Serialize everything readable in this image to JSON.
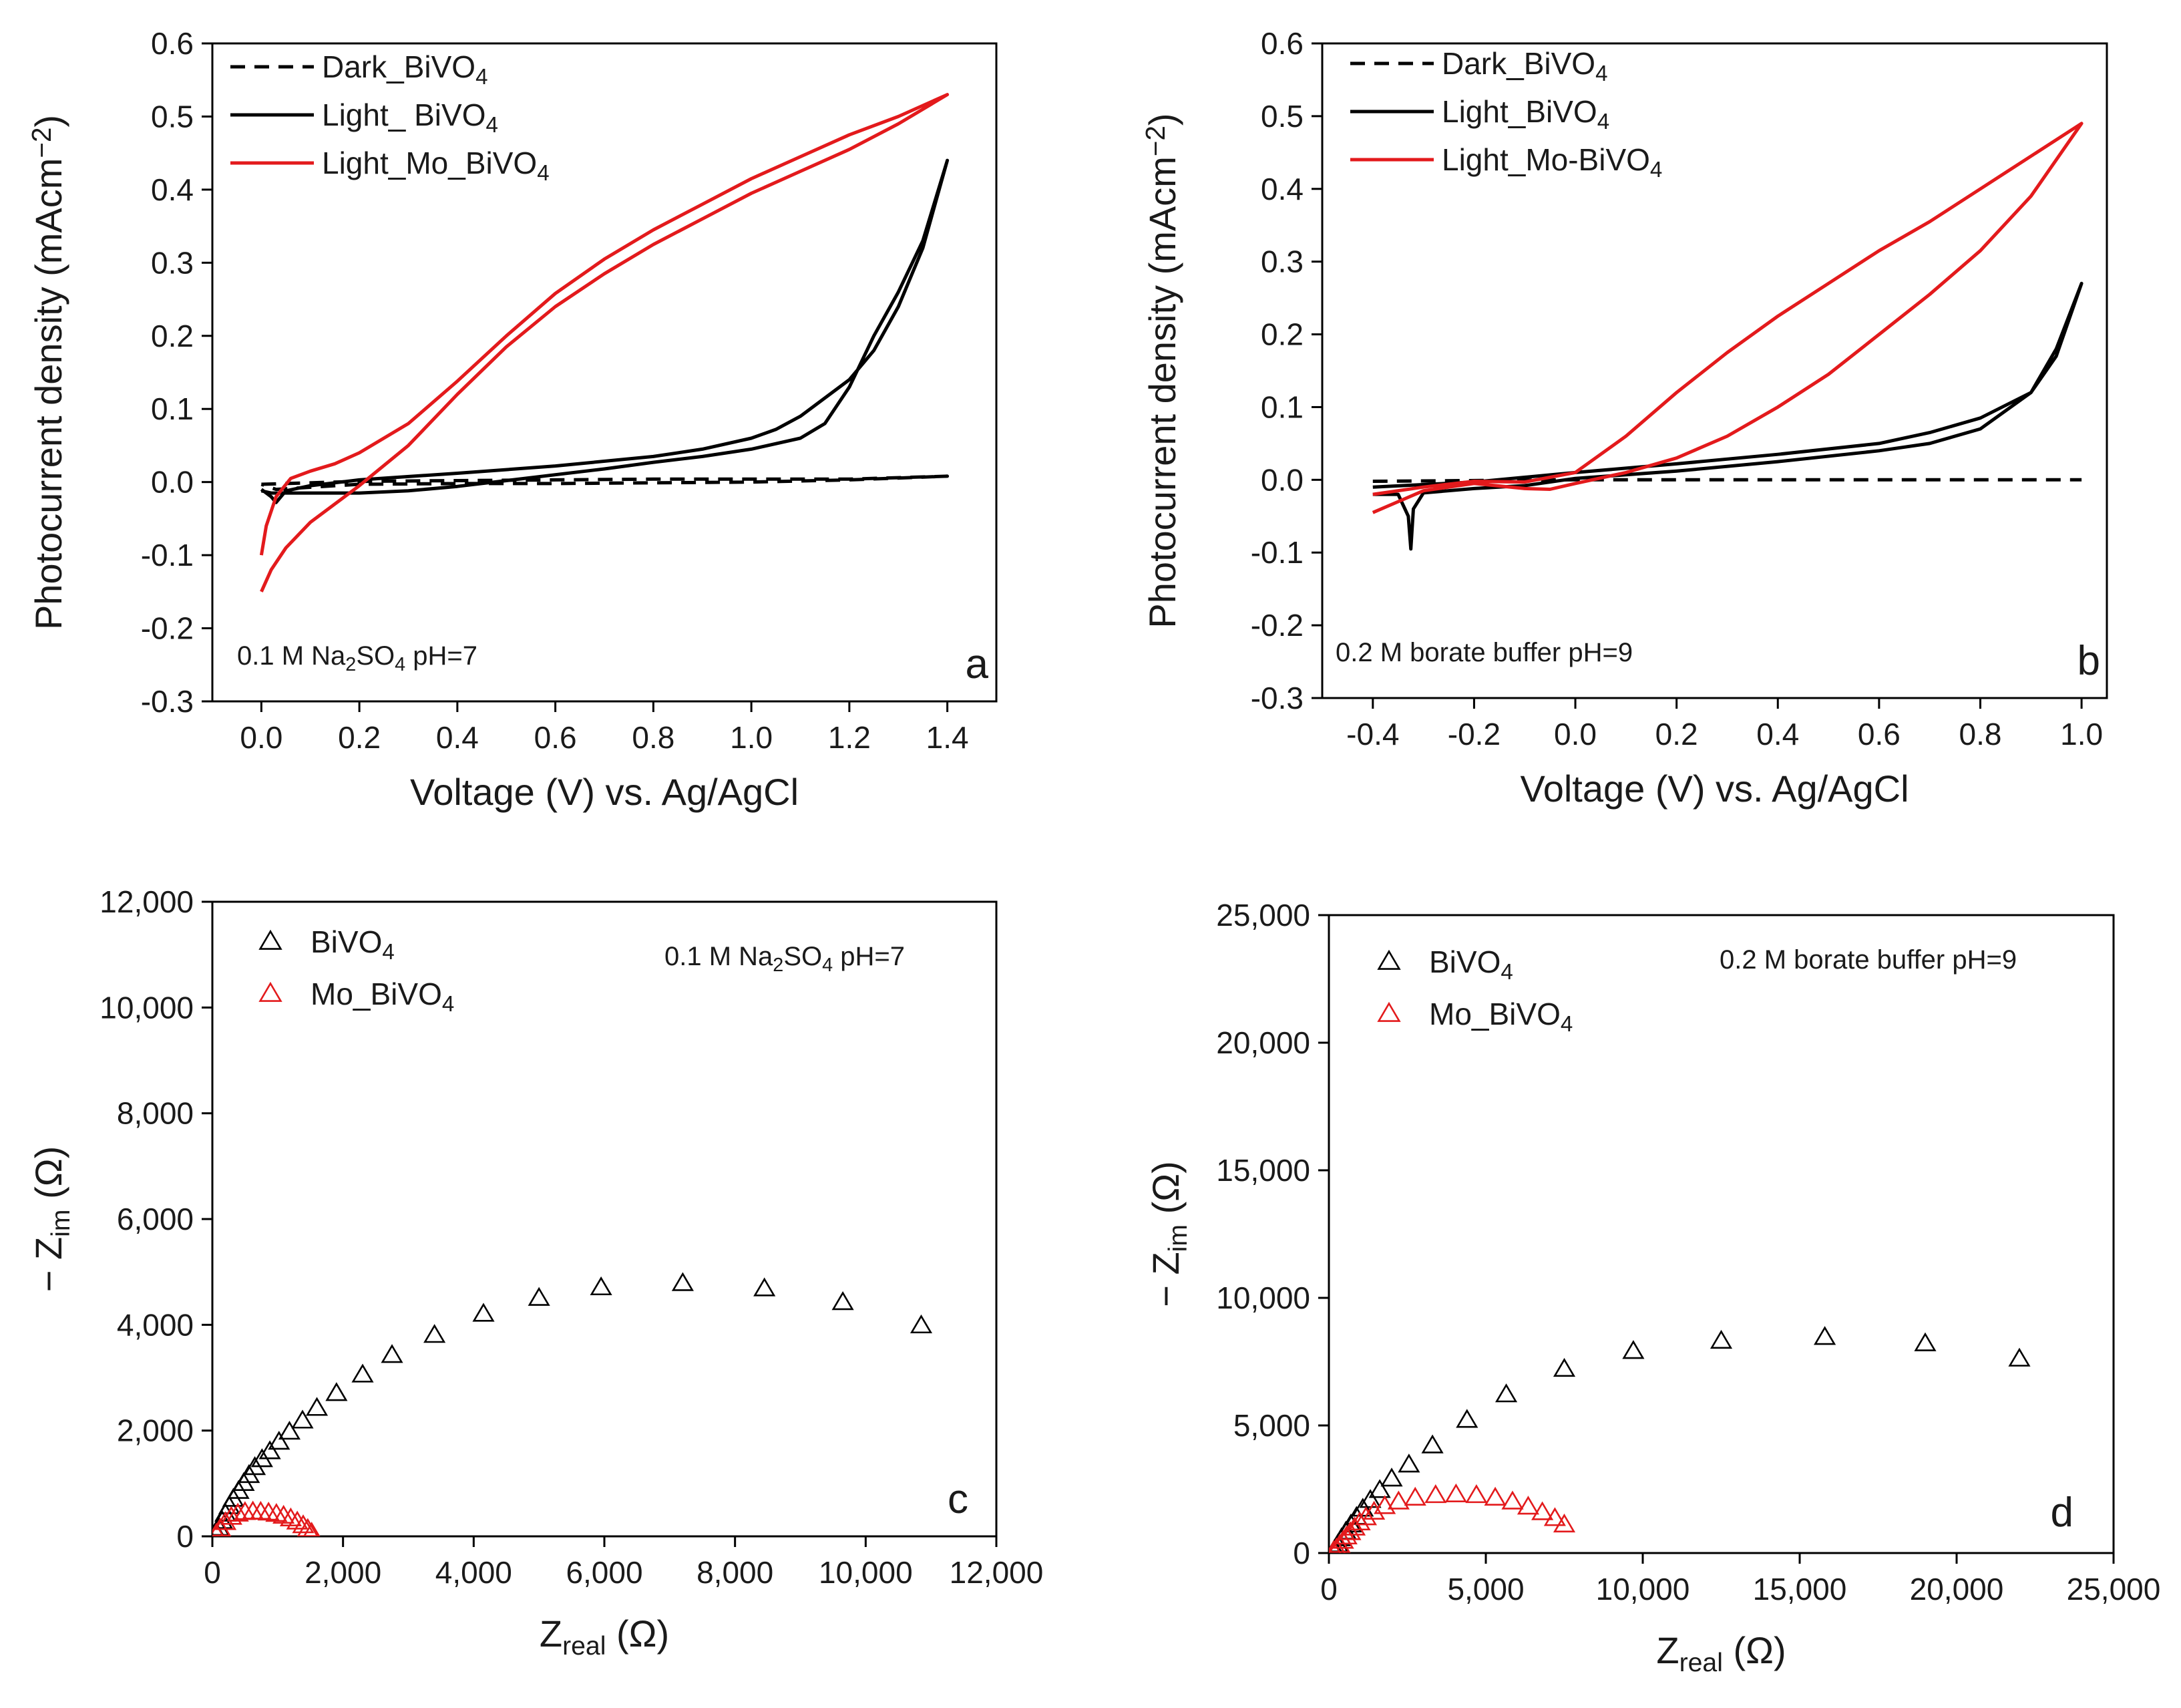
{
  "figure": "Four-panel photoelectrochemical characterization of BiVO4 and Mo-doped BiVO4",
  "chart_data": [
    {
      "type": "line",
      "panel": "a",
      "panel_label": "a",
      "condition_text": "0.1 M Na₂SO₄ pH=7",
      "xlabel": "Voltage (V) vs. Ag/AgCl",
      "ylabel": "Photocurrent density (mAcm⁻²)",
      "xlim": [
        -0.1,
        1.5
      ],
      "ylim": [
        -0.3,
        0.6
      ],
      "xticks": [
        0.0,
        0.2,
        0.4,
        0.6,
        0.8,
        1.0,
        1.2,
        1.4
      ],
      "xtick_labels": [
        "0.0",
        "0.2",
        "0.4",
        "0.6",
        "0.8",
        "1.0",
        "1.2",
        "1.4"
      ],
      "yticks": [
        -0.3,
        -0.2,
        -0.1,
        0.0,
        0.1,
        0.2,
        0.3,
        0.4,
        0.5,
        0.6
      ],
      "ytick_labels": [
        "-0.3",
        "-0.2",
        "-0.1",
        "0.0",
        "0.1",
        "0.2",
        "0.3",
        "0.4",
        "0.5",
        "0.6"
      ],
      "series": [
        {
          "name": "Dark_BiVO₄",
          "color": "#000000",
          "style": "dashed",
          "x": [
            0.0,
            0.2,
            0.4,
            0.6,
            0.8,
            1.0,
            1.2,
            1.4,
            1.2,
            1.0,
            0.8,
            0.6,
            0.4,
            0.2,
            0.03,
            0.0
          ],
          "y": [
            -0.003,
            0.001,
            0.002,
            0.003,
            0.004,
            0.004,
            0.004,
            0.008,
            0.003,
            0.0,
            -0.001,
            -0.002,
            -0.002,
            -0.003,
            -0.01,
            -0.003
          ]
        },
        {
          "name": "Light_ BiVO₄",
          "color": "#000000",
          "style": "solid",
          "x": [
            0.0,
            0.02,
            0.03,
            0.05,
            0.1,
            0.2,
            0.4,
            0.6,
            0.8,
            0.9,
            1.0,
            1.05,
            1.1,
            1.2,
            1.25,
            1.3,
            1.35,
            1.4,
            1.35,
            1.3,
            1.25,
            1.2,
            1.15,
            1.1,
            1.0,
            0.9,
            0.8,
            0.7,
            0.6,
            0.5,
            0.4,
            0.3,
            0.2,
            0.1,
            0.04,
            0.02,
            0.0
          ],
          "y": [
            -0.01,
            -0.02,
            -0.028,
            -0.012,
            -0.005,
            0.003,
            0.012,
            0.022,
            0.035,
            0.045,
            0.06,
            0.072,
            0.09,
            0.14,
            0.18,
            0.24,
            0.32,
            0.44,
            0.33,
            0.26,
            0.2,
            0.13,
            0.08,
            0.06,
            0.045,
            0.035,
            0.027,
            0.018,
            0.01,
            0.002,
            -0.006,
            -0.012,
            -0.015,
            -0.015,
            -0.015,
            -0.015,
            -0.012
          ]
        },
        {
          "name": "Light_Mo_BiVO₄",
          "color": "#e31a1c",
          "style": "solid",
          "x": [
            0.0,
            0.02,
            0.05,
            0.1,
            0.2,
            0.3,
            0.4,
            0.5,
            0.6,
            0.7,
            0.8,
            0.9,
            1.0,
            1.1,
            1.2,
            1.3,
            1.4,
            1.3,
            1.2,
            1.1,
            1.0,
            0.9,
            0.8,
            0.7,
            0.6,
            0.5,
            0.4,
            0.3,
            0.2,
            0.15,
            0.1,
            0.06,
            0.03,
            0.01,
            0.0
          ],
          "y": [
            -0.15,
            -0.12,
            -0.09,
            -0.055,
            -0.005,
            0.05,
            0.12,
            0.185,
            0.24,
            0.285,
            0.325,
            0.36,
            0.395,
            0.425,
            0.455,
            0.49,
            0.53,
            0.5,
            0.475,
            0.445,
            0.415,
            0.38,
            0.345,
            0.305,
            0.258,
            0.2,
            0.138,
            0.08,
            0.04,
            0.025,
            0.015,
            0.005,
            -0.02,
            -0.06,
            -0.1
          ]
        }
      ]
    },
    {
      "type": "line",
      "panel": "b",
      "panel_label": "b",
      "condition_text": "0.2 M borate buffer pH=9",
      "xlabel": "Voltage (V) vs. Ag/AgCl",
      "ylabel": "Photocurrent density (mAcm⁻²)",
      "xlim": [
        -0.5,
        1.05
      ],
      "ylim": [
        -0.3,
        0.6
      ],
      "xticks": [
        -0.4,
        -0.2,
        0.0,
        0.2,
        0.4,
        0.6,
        0.8,
        1.0
      ],
      "xtick_labels": [
        "-0.4",
        "-0.2",
        "0.0",
        "0.2",
        "0.4",
        "0.6",
        "0.8",
        "1.0"
      ],
      "yticks": [
        -0.3,
        -0.2,
        -0.1,
        0.0,
        0.1,
        0.2,
        0.3,
        0.4,
        0.5,
        0.6
      ],
      "ytick_labels": [
        "-0.3",
        "-0.2",
        "-0.1",
        "0.0",
        "0.1",
        "0.2",
        "0.3",
        "0.4",
        "0.5",
        "0.6"
      ],
      "series": [
        {
          "name": "Dark_BiVO₄",
          "color": "#000000",
          "style": "dashed",
          "x": [
            -0.4,
            0.0,
            0.5,
            1.0
          ],
          "y": [
            -0.002,
            0.0,
            0.0,
            0.0
          ]
        },
        {
          "name": "Light_BiVO₄",
          "color": "#000000",
          "style": "solid",
          "x": [
            -0.4,
            -0.35,
            -0.33,
            -0.325,
            -0.32,
            -0.3,
            -0.2,
            -0.1,
            0.0,
            0.2,
            0.4,
            0.6,
            0.7,
            0.8,
            0.9,
            0.95,
            1.0,
            0.95,
            0.9,
            0.8,
            0.7,
            0.6,
            0.4,
            0.2,
            0.0,
            -0.2,
            -0.4
          ],
          "y": [
            -0.02,
            -0.02,
            -0.05,
            -0.095,
            -0.04,
            -0.018,
            -0.012,
            -0.008,
            0.002,
            0.012,
            0.025,
            0.04,
            0.05,
            0.07,
            0.12,
            0.18,
            0.27,
            0.17,
            0.12,
            0.085,
            0.065,
            0.05,
            0.035,
            0.022,
            0.01,
            -0.003,
            -0.01
          ]
        },
        {
          "name": "Light_Mo-BiVO₄",
          "color": "#e31a1c",
          "style": "solid",
          "x": [
            -0.4,
            -0.35,
            -0.3,
            -0.2,
            -0.1,
            -0.05,
            0.0,
            0.1,
            0.2,
            0.3,
            0.4,
            0.5,
            0.6,
            0.7,
            0.8,
            0.9,
            1.0,
            0.9,
            0.8,
            0.7,
            0.6,
            0.5,
            0.4,
            0.3,
            0.2,
            0.1,
            0.0,
            -0.1,
            -0.2,
            -0.3,
            -0.4
          ],
          "y": [
            -0.045,
            -0.03,
            -0.015,
            -0.005,
            -0.012,
            -0.013,
            -0.005,
            0.01,
            0.03,
            0.06,
            0.1,
            0.145,
            0.2,
            0.255,
            0.315,
            0.39,
            0.49,
            0.445,
            0.4,
            0.355,
            0.315,
            0.27,
            0.225,
            0.175,
            0.12,
            0.06,
            0.01,
            -0.003,
            -0.002,
            -0.01,
            -0.02
          ]
        }
      ]
    },
    {
      "type": "scatter",
      "panel": "c",
      "panel_label": "c",
      "condition_text": "0.1 M Na₂SO₄ pH=7",
      "xlabel_main": "Z",
      "xlabel_sub": "real",
      "xlabel_unit": " (Ω)",
      "ylabel_main": "− Z",
      "ylabel_sub": "im",
      "ylabel_unit": " (Ω)",
      "xlim": [
        0,
        12000
      ],
      "ylim": [
        0,
        12000
      ],
      "xticks": [
        0,
        2000,
        4000,
        6000,
        8000,
        10000,
        12000
      ],
      "xtick_labels": [
        "0",
        "2,000",
        "4,000",
        "6,000",
        "8,000",
        "10,000",
        "12,000"
      ],
      "yticks": [
        0,
        2000,
        4000,
        6000,
        8000,
        10000,
        12000
      ],
      "ytick_labels": [
        "0",
        "2,000",
        "4,000",
        "6,000",
        "8,000",
        "10,000",
        "12,000"
      ],
      "series": [
        {
          "name": "BiVO₄",
          "color": "#000000",
          "marker": "open-triangle",
          "x": [
            60,
            100,
            150,
            200,
            260,
            320,
            400,
            480,
            560,
            650,
            760,
            880,
            1020,
            1180,
            1380,
            1600,
            1900,
            2300,
            2750,
            3400,
            4150,
            5000,
            5950,
            7200,
            8450,
            9650,
            10850
          ],
          "y": [
            60,
            150,
            280,
            420,
            560,
            700,
            850,
            1000,
            1150,
            1300,
            1450,
            1600,
            1780,
            1970,
            2180,
            2420,
            2700,
            3050,
            3420,
            3800,
            4200,
            4500,
            4700,
            4780,
            4680,
            4420,
            3980
          ]
        },
        {
          "name": "Mo_BiVO₄",
          "color": "#e31a1c",
          "marker": "open-triangle",
          "x": [
            60,
            120,
            200,
            290,
            390,
            500,
            620,
            740,
            860,
            980,
            1090,
            1200,
            1300,
            1390,
            1460,
            1520
          ],
          "y": [
            40,
            140,
            260,
            360,
            420,
            450,
            460,
            455,
            440,
            415,
            380,
            330,
            270,
            200,
            130,
            60
          ]
        }
      ]
    },
    {
      "type": "scatter",
      "panel": "d",
      "panel_label": "d",
      "condition_text": "0.2 M borate buffer pH=9",
      "xlabel_main": "Z",
      "xlabel_sub": "real",
      "xlabel_unit": " (Ω)",
      "ylabel_main": "− Z",
      "ylabel_sub": "im",
      "ylabel_unit": " (Ω)",
      "xlim": [
        0,
        25000
      ],
      "ylim": [
        0,
        25000
      ],
      "xticks": [
        0,
        5000,
        10000,
        15000,
        20000,
        25000
      ],
      "xtick_labels": [
        "0",
        "5,000",
        "10,000",
        "15,000",
        "20,000",
        "25,000"
      ],
      "yticks": [
        0,
        5000,
        10000,
        15000,
        20000,
        25000
      ],
      "ytick_labels": [
        "0",
        "5,000",
        "10,000",
        "15,000",
        "20,000",
        "25,000"
      ],
      "series": [
        {
          "name": "BiVO₄",
          "color": "#000000",
          "marker": "open-triangle",
          "x": [
            180,
            280,
            400,
            540,
            700,
            880,
            1080,
            1320,
            1620,
            2000,
            2550,
            3300,
            4400,
            5650,
            7500,
            9700,
            12500,
            15800,
            19000,
            22000
          ],
          "y": [
            120,
            320,
            560,
            820,
            1100,
            1400,
            1720,
            2060,
            2450,
            2900,
            3450,
            4200,
            5200,
            6200,
            7200,
            7900,
            8300,
            8450,
            8200,
            7600
          ]
        },
        {
          "name": "Mo_BiVO₄",
          "color": "#e31a1c",
          "marker": "open-triangle",
          "x": [
            150,
            240,
            340,
            450,
            560,
            680,
            820,
            980,
            1180,
            1440,
            1780,
            2220,
            2750,
            3400,
            4050,
            4700,
            5300,
            5850,
            6350,
            6800,
            7200,
            7500
          ],
          "y": [
            60,
            160,
            300,
            460,
            630,
            800,
            980,
            1180,
            1380,
            1600,
            1820,
            2000,
            2150,
            2250,
            2280,
            2250,
            2150,
            2000,
            1800,
            1580,
            1350,
            1100
          ]
        }
      ]
    }
  ]
}
